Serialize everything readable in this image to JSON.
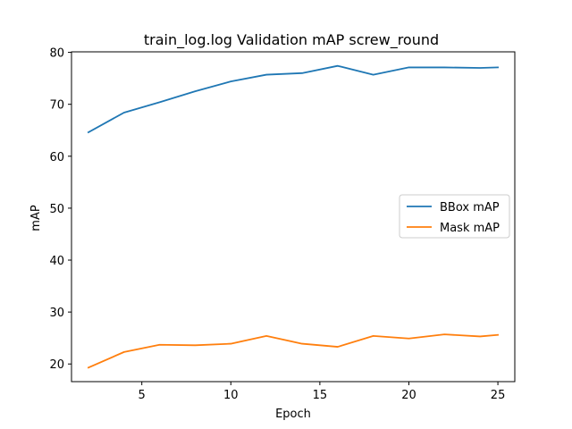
{
  "chart_data": {
    "type": "line",
    "title": "train_log.log Validation mAP screw_round",
    "xlabel": "Epoch",
    "ylabel": "mAP",
    "xlim": [
      1.05,
      25.95
    ],
    "ylim": [
      16.6,
      80.1
    ],
    "xticks": [
      5,
      10,
      15,
      20,
      25
    ],
    "yticks": [
      20,
      30,
      40,
      50,
      60,
      70,
      80
    ],
    "legend_position": "center-right",
    "x": [
      2,
      4,
      6,
      8,
      10,
      12,
      14,
      16,
      18,
      20,
      22,
      24,
      25
    ],
    "series": [
      {
        "name": "BBox mAP",
        "color": "#1f77b4",
        "values": [
          64.6,
          68.4,
          70.4,
          72.5,
          74.4,
          75.7,
          76.0,
          77.4,
          75.7,
          77.1,
          77.1,
          77.0,
          77.1
        ]
      },
      {
        "name": "Mask mAP",
        "color": "#ff7f0e",
        "values": [
          19.3,
          22.3,
          23.7,
          23.6,
          23.9,
          25.4,
          23.9,
          23.3,
          25.4,
          24.9,
          25.7,
          25.3,
          25.6
        ]
      }
    ]
  }
}
